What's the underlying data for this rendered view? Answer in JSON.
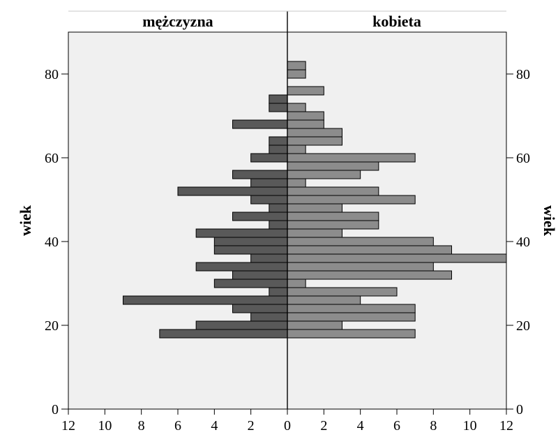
{
  "chart_data": {
    "type": "bar",
    "orientation": "horizontal",
    "subtype": "population-pyramid",
    "title": "",
    "panels": [
      {
        "name": "mężczyzna",
        "side": "left",
        "color": "#595959"
      },
      {
        "name": "kobieta",
        "side": "right",
        "color": "#8c8c8c"
      }
    ],
    "ylabel": "wiek",
    "xlim": [
      0,
      12
    ],
    "ylim": [
      0,
      90
    ],
    "xticks": [
      12,
      10,
      8,
      6,
      4,
      2,
      0,
      2,
      4,
      6,
      8,
      10,
      12
    ],
    "yticks": [
      0,
      20,
      40,
      60,
      80
    ],
    "bin_width": 2,
    "background": "#f0f0f0",
    "grid": false,
    "series": [
      {
        "name": "mężczyzna",
        "data": [
          {
            "age": 18,
            "count": 7
          },
          {
            "age": 20,
            "count": 5
          },
          {
            "age": 22,
            "count": 2
          },
          {
            "age": 24,
            "count": 3
          },
          {
            "age": 26,
            "count": 9
          },
          {
            "age": 28,
            "count": 1
          },
          {
            "age": 30,
            "count": 4
          },
          {
            "age": 32,
            "count": 3
          },
          {
            "age": 34,
            "count": 5
          },
          {
            "age": 36,
            "count": 2
          },
          {
            "age": 38,
            "count": 4
          },
          {
            "age": 40,
            "count": 4
          },
          {
            "age": 42,
            "count": 5
          },
          {
            "age": 44,
            "count": 1
          },
          {
            "age": 46,
            "count": 3
          },
          {
            "age": 48,
            "count": 1
          },
          {
            "age": 50,
            "count": 2
          },
          {
            "age": 52,
            "count": 6
          },
          {
            "age": 54,
            "count": 2
          },
          {
            "age": 56,
            "count": 3
          },
          {
            "age": 60,
            "count": 2
          },
          {
            "age": 62,
            "count": 1
          },
          {
            "age": 64,
            "count": 1
          },
          {
            "age": 68,
            "count": 3
          },
          {
            "age": 72,
            "count": 1
          },
          {
            "age": 74,
            "count": 1
          }
        ]
      },
      {
        "name": "kobieta",
        "data": [
          {
            "age": 18,
            "count": 7
          },
          {
            "age": 20,
            "count": 3
          },
          {
            "age": 22,
            "count": 7
          },
          {
            "age": 24,
            "count": 7
          },
          {
            "age": 26,
            "count": 4
          },
          {
            "age": 28,
            "count": 6
          },
          {
            "age": 30,
            "count": 1
          },
          {
            "age": 32,
            "count": 9
          },
          {
            "age": 34,
            "count": 8
          },
          {
            "age": 36,
            "count": 12
          },
          {
            "age": 38,
            "count": 9
          },
          {
            "age": 40,
            "count": 8
          },
          {
            "age": 42,
            "count": 3
          },
          {
            "age": 44,
            "count": 5
          },
          {
            "age": 46,
            "count": 5
          },
          {
            "age": 48,
            "count": 3
          },
          {
            "age": 50,
            "count": 7
          },
          {
            "age": 52,
            "count": 5
          },
          {
            "age": 54,
            "count": 1
          },
          {
            "age": 56,
            "count": 4
          },
          {
            "age": 58,
            "count": 5
          },
          {
            "age": 60,
            "count": 7
          },
          {
            "age": 62,
            "count": 1
          },
          {
            "age": 64,
            "count": 3
          },
          {
            "age": 66,
            "count": 3
          },
          {
            "age": 68,
            "count": 2
          },
          {
            "age": 70,
            "count": 2
          },
          {
            "age": 72,
            "count": 1
          },
          {
            "age": 76,
            "count": 2
          },
          {
            "age": 80,
            "count": 1
          },
          {
            "age": 82,
            "count": 1
          }
        ]
      }
    ]
  }
}
